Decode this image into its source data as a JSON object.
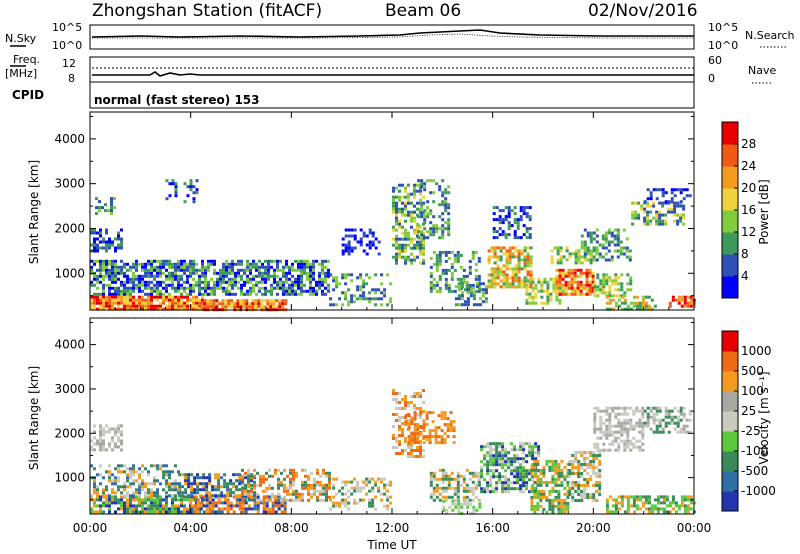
{
  "header": {
    "station": "Zhongshan Station (fitACF)",
    "beam": "Beam 06",
    "date": "02/Nov/2016"
  },
  "strip_panels": {
    "nsky_label": "N.Sky",
    "nsky_ticks": [
      "10^5",
      "10^0"
    ],
    "nsearch_label": "N.Search",
    "nsearch_ticks": [
      "10^5",
      "10^0"
    ],
    "freq_label_1": "Freq.",
    "freq_label_2": "[MHz]",
    "freq_ticks": [
      "12",
      "8"
    ],
    "nave_label": "Nave",
    "nave_ticks": [
      "60",
      "0"
    ],
    "cpid_label": "CPID",
    "cpid_text": "normal (fast stereo) 153"
  },
  "colors": {
    "power_scale": [
      "#0000ff",
      "#2f50b4",
      "#3c9a5a",
      "#7fcc3c",
      "#f0d23c",
      "#f39b1e",
      "#f05a14",
      "#e60000"
    ],
    "velocity_scale": [
      "#2037b0",
      "#2e6fa6",
      "#3a8a5a",
      "#5bc83c",
      "#c9c9c0",
      "#a8a8a0",
      "#f39b1e",
      "#ef6a14",
      "#e60000"
    ]
  },
  "chart_data": [
    {
      "type": "heatmap",
      "name": "power",
      "ylabel": "Slant Range [km]",
      "yticks": [
        "4000",
        "3000",
        "2000",
        "1000"
      ],
      "colorbar_label": "Power [dB]",
      "colorbar_ticks": [
        "28",
        "24",
        "20",
        "16",
        "12",
        "8",
        "4"
      ],
      "xlabel": "",
      "xticks": []
    },
    {
      "type": "heatmap",
      "name": "velocity",
      "ylabel": "Slant Range [km]",
      "yticks": [
        "4000",
        "3000",
        "2000",
        "1000"
      ],
      "colorbar_label": "Velocity [m s⁻¹]",
      "colorbar_ticks": [
        "1000",
        "500",
        "100",
        "25",
        "-25",
        "-100",
        "-500",
        "-1000"
      ],
      "xlabel": "Time UT",
      "xticks": [
        "00:00",
        "04:00",
        "08:00",
        "12:00",
        "16:00",
        "20:00",
        "00:00"
      ]
    }
  ]
}
